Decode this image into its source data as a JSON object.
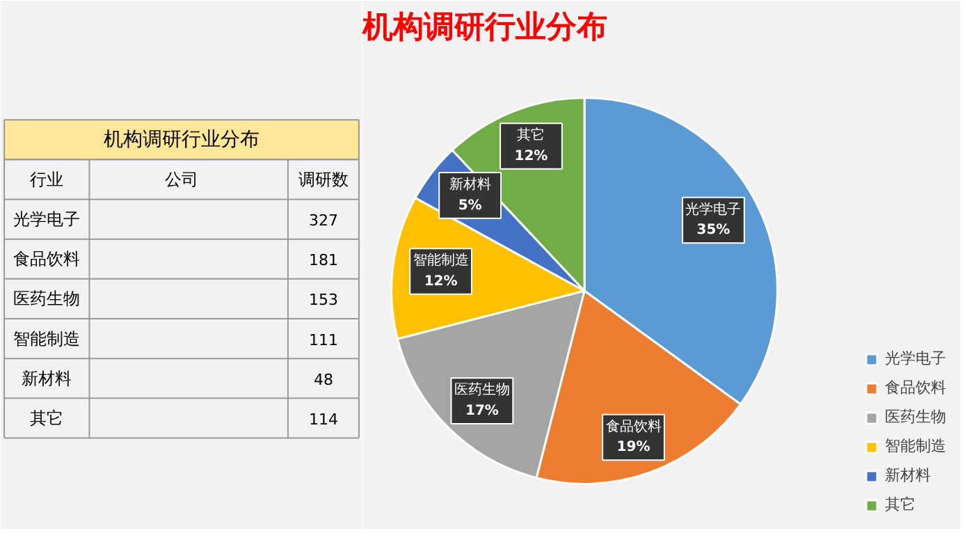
{
  "chart_data": [
    {
      "type": "pie",
      "title": "机构调研行业分布",
      "categories": [
        "光学电子",
        "食品饮料",
        "医药生物",
        "智能制造",
        "新材料",
        "其它"
      ],
      "values": [
        35,
        19,
        17,
        12,
        5,
        12
      ],
      "colors": [
        "#5b9bd5",
        "#ed7d31",
        "#a5a5a5",
        "#ffc000",
        "#4472c4",
        "#70ad47"
      ],
      "value_labels": [
        "35%",
        "19%",
        "17%",
        "12%",
        "5%",
        "12%"
      ],
      "legend": "right"
    },
    {
      "type": "other",
      "title": "机构调研行业分布",
      "annotations": [
        "行业",
        "公司",
        "调研数",
        "光学电子",
        "327",
        "食品饮料",
        "181",
        "医药生物",
        "153",
        "智能制造",
        "111",
        "新材料",
        "48",
        "其它",
        "114"
      ]
    }
  ]
}
